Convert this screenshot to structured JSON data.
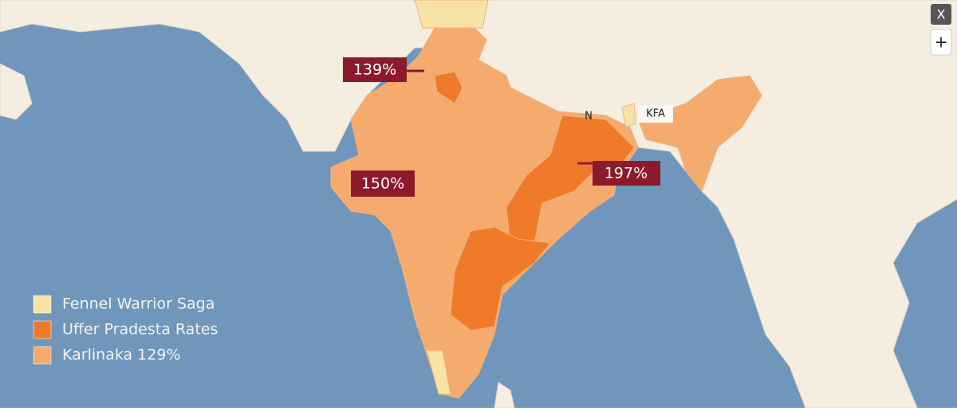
{
  "controls": {
    "close": "X",
    "zoom_in": "+"
  },
  "map_labels": [
    "N",
    "KFA"
  ],
  "callouts": [
    "139%",
    "150%",
    "197%"
  ],
  "legend": [
    {
      "label": "Fennel Warrior Saga",
      "color": "#f8e3a6"
    },
    {
      "label": "Uffer Pradesta Rates",
      "color": "#ef7b2a"
    },
    {
      "label": "Karlinaka 129%",
      "color": "#f5ab6e"
    }
  ]
}
